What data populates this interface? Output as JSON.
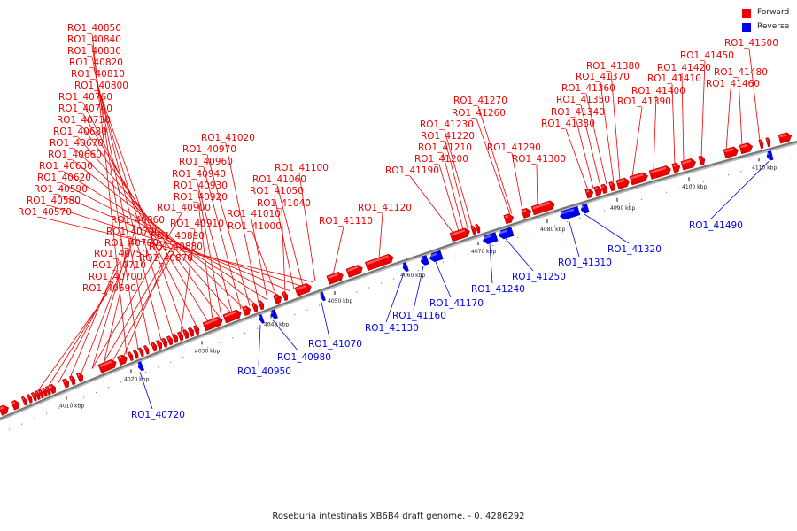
{
  "caption": "Roseburia intestinalis XB6B4 draft genome. - 0..4286292",
  "legend": [
    {
      "label": "Forward",
      "color": "#ee0000"
    },
    {
      "label": "Reverse",
      "color": "#0000ee"
    }
  ],
  "colors": {
    "forward": "#ee0000",
    "reverse": "#0000ee",
    "axis": "#888888"
  },
  "axis_ticks": [
    "4010 kbp",
    "4020 kbp",
    "4030 kbp",
    "4040 kbp",
    "4050 kbp",
    "4060 kbp",
    "4070 kbp",
    "4080 kbp",
    "4090 kbp",
    "4100 kbp",
    "4110 kbp"
  ],
  "forward_labels": [
    "RO1_40570",
    "RO1_40580",
    "RO1_40590",
    "RO1_40620",
    "RO1_40630",
    "RO1_40660",
    "RO1_40670",
    "RO1_40680",
    "RO1_40690",
    "RO1_40700",
    "RO1_40710",
    "RO1_40730",
    "RO1_40740",
    "RO1_40750",
    "RO1_40760",
    "RO1_40780",
    "RO1_40790",
    "RO1_40800",
    "RO1_40810",
    "RO1_40820",
    "RO1_40830",
    "RO1_40840",
    "RO1_40850",
    "RO1_40860",
    "RO1_40870",
    "RO1_40880",
    "RO1_40890",
    "RO1_40900",
    "RO1_40910",
    "RO1_40920",
    "RO1_40930",
    "RO1_40940",
    "RO1_40960",
    "RO1_40970",
    "RO1_41000",
    "RO1_41010",
    "RO1_41020",
    "RO1_41040",
    "RO1_41050",
    "RO1_41060",
    "RO1_41100",
    "RO1_41110",
    "RO1_41120",
    "RO1_41190",
    "RO1_41200",
    "RO1_41210",
    "RO1_41220",
    "RO1_41230",
    "RO1_41260",
    "RO1_41270",
    "RO1_41290",
    "RO1_41300",
    "RO1_41330",
    "RO1_41340",
    "RO1_41350",
    "RO1_41360",
    "RO1_41370",
    "RO1_41380",
    "RO1_41390",
    "RO1_41400",
    "RO1_41410",
    "RO1_41420",
    "RO1_41450",
    "RO1_41460",
    "RO1_41480",
    "RO1_41500"
  ],
  "reverse_labels": [
    "RO1_40720",
    "RO1_40950",
    "RO1_40980",
    "RO1_41070",
    "RO1_41130",
    "RO1_41160",
    "RO1_41170",
    "RO1_41240",
    "RO1_41250",
    "RO1_41310",
    "RO1_41320",
    "RO1_41490"
  ]
}
